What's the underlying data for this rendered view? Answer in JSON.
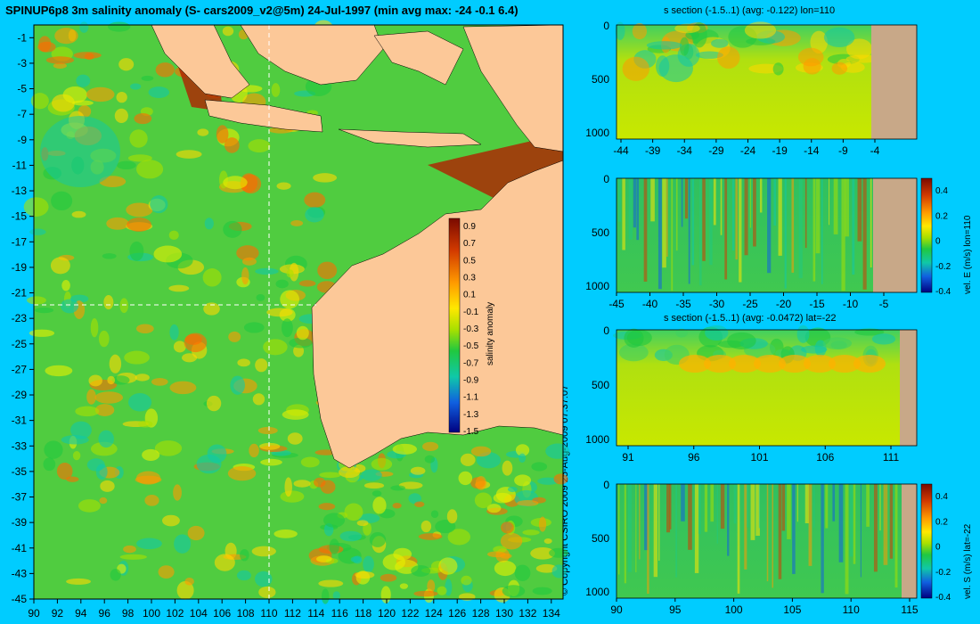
{
  "title": "SPINUP6p8 3m salinity anomaly (S- cars2009_v2@5m) 24-Jul-1997 (min avg max: -24 -0.1 6.4)",
  "copyright": "© Copyright CSIRO 2009   25-Aug-2009 07:37:07",
  "colors": {
    "background": "#00ccff",
    "land": "#fcc898",
    "section_land": "#c8a888"
  },
  "chart_data": [
    {
      "id": "map",
      "type": "heatmap",
      "title": "SPINUP6p8 3m salinity anomaly (S- cars2009_v2@5m) 24-Jul-1997 (min avg max: -24 -0.1 6.4)",
      "x_ticks": [
        90,
        92,
        94,
        96,
        98,
        100,
        102,
        104,
        106,
        108,
        110,
        112,
        114,
        116,
        118,
        120,
        122,
        124,
        126,
        128,
        130,
        132,
        134
      ],
      "y_ticks": [
        -1,
        -3,
        -5,
        -7,
        -9,
        -11,
        -13,
        -15,
        -17,
        -19,
        -21,
        -23,
        -25,
        -27,
        -29,
        -31,
        -33,
        -35,
        -37,
        -39,
        -41,
        -43,
        -45
      ],
      "xlim": [
        90,
        135
      ],
      "ylim": [
        -45,
        0
      ],
      "crosshair": {
        "lon": 110,
        "lat": -22
      },
      "colorbar": {
        "label": "salinity anomaly",
        "ticks": [
          "0.9",
          "0.7",
          "0.5",
          "0.3",
          "0.1",
          "-0.1",
          "-0.3",
          "-0.5",
          "-0.7",
          "-0.9",
          "-1.1",
          "-1.3",
          "-1.5"
        ]
      }
    },
    {
      "id": "section-s-lon110",
      "type": "heatmap",
      "title": "s section (-1.5..1) (avg: -0.122) lon=110",
      "x_ticks": [
        "-44",
        "-39",
        "-34",
        "-29",
        "-24",
        "-19",
        "-14",
        "-9",
        "-4"
      ],
      "y_ticks": [
        "0",
        "500",
        "1000"
      ]
    },
    {
      "id": "section-veast-lon110",
      "type": "heatmap",
      "title": "",
      "x_ticks": [
        "-45",
        "-40",
        "-35",
        "-30",
        "-25",
        "-20",
        "-15",
        "-10",
        "-5"
      ],
      "y_ticks": [
        "0",
        "500",
        "1000"
      ],
      "colorbar": {
        "label": "vel. E (m/s) lon=110",
        "ticks": [
          "0.4",
          "0.2",
          "0",
          "-0.2",
          "-0.4"
        ]
      }
    },
    {
      "id": "section-s-lat22",
      "type": "heatmap",
      "title": "s section (-1.5..1) (avg: -0.0472) lat=-22",
      "x_ticks": [
        "91",
        "96",
        "101",
        "106",
        "111"
      ],
      "y_ticks": [
        "0",
        "500",
        "1000"
      ]
    },
    {
      "id": "section-vsouth-lat22",
      "type": "heatmap",
      "title": "",
      "x_ticks": [
        "90",
        "95",
        "100",
        "105",
        "110",
        "115"
      ],
      "y_ticks": [
        "0",
        "500",
        "1000"
      ],
      "colorbar": {
        "label": "vel. S (m/s) lat=-22",
        "ticks": [
          "0.4",
          "0.2",
          "0",
          "-0.2",
          "-0.4"
        ]
      }
    }
  ]
}
